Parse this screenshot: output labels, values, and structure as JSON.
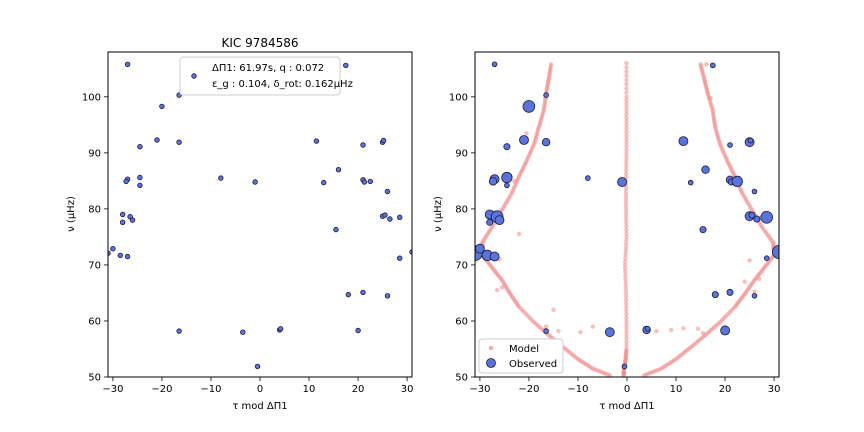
{
  "chart_data": [
    {
      "type": "scatter",
      "title": "KIC 9784586",
      "xlabel": "τ mod ΔΠ1",
      "ylabel": "ν (μHz)",
      "xlim": [
        -31,
        31
      ],
      "ylim": [
        50,
        108
      ],
      "xticks": [
        -30,
        -20,
        -10,
        0,
        10,
        20,
        30
      ],
      "yticks": [
        50,
        60,
        70,
        80,
        90,
        100
      ],
      "legend_position": "upper-center",
      "annotation": {
        "line1": "ΔΠ1: 61.97s, q : 0.072",
        "line2": "ε_g : 0.104, δ_rot: 0.162μHz"
      },
      "series": [
        {
          "style": "observed",
          "color": "#5b74d9",
          "points": [
            [
              -27,
              105.8
            ],
            [
              -16.5,
              100.3
            ],
            [
              -20,
              98.3
            ],
            [
              -21,
              92.3
            ],
            [
              -16.5,
              91.9
            ],
            [
              -24.5,
              91.1
            ],
            [
              -27,
              85.3
            ],
            [
              -27.3,
              84.9
            ],
            [
              -24.5,
              85.6
            ],
            [
              -24.5,
              84.2
            ],
            [
              -8,
              85.5
            ],
            [
              -1,
              84.8
            ],
            [
              -28,
              79
            ],
            [
              -26.5,
              78.6
            ],
            [
              -26,
              78
            ],
            [
              -28,
              77.6
            ],
            [
              -31,
              72.1
            ],
            [
              -30,
              72.9
            ],
            [
              -28.5,
              71.7
            ],
            [
              -27,
              71.5
            ],
            [
              -16.5,
              58.2
            ],
            [
              -3.5,
              58
            ],
            [
              4,
              58.4
            ],
            [
              4.2,
              58.6
            ],
            [
              -0.5,
              51.9
            ],
            [
              17.5,
              105.6
            ],
            [
              11.5,
              92.1
            ],
            [
              21,
              91.4
            ],
            [
              25,
              91.9
            ],
            [
              25.2,
              92.2
            ],
            [
              16,
              87
            ],
            [
              13,
              84.7
            ],
            [
              21,
              85.2
            ],
            [
              21.3,
              84.8
            ],
            [
              22.5,
              84.9
            ],
            [
              26,
              83.1
            ],
            [
              25,
              78.7
            ],
            [
              25.5,
              78.9
            ],
            [
              26.5,
              78.2
            ],
            [
              28.5,
              78.5
            ],
            [
              15.5,
              76.3
            ],
            [
              31,
              72.3
            ],
            [
              28.5,
              71.2
            ],
            [
              18,
              64.7
            ],
            [
              21,
              65.1
            ],
            [
              26,
              64.5
            ],
            [
              20,
              58.3
            ]
          ]
        }
      ]
    },
    {
      "type": "scatter",
      "xlabel": "τ mod ΔΠ1",
      "ylabel": "ν (μHz)",
      "xlim": [
        -31,
        31
      ],
      "ylim": [
        50,
        108
      ],
      "xticks": [
        -30,
        -20,
        -10,
        0,
        10,
        20,
        30
      ],
      "yticks": [
        50,
        60,
        70,
        80,
        90,
        100
      ],
      "legend_position": "lower-left",
      "legend": [
        "Model",
        "Observed"
      ],
      "series": [
        {
          "name": "Model",
          "color": "#f08a8a",
          "tracks": {
            "center": [
              [
                -0.7,
                50.3
              ],
              [
                -0.6,
                51.5
              ],
              [
                -0.3,
                53
              ],
              [
                -0.1,
                55
              ],
              [
                -0.1,
                60
              ],
              [
                -0.2,
                65
              ],
              [
                -0.4,
                70
              ],
              [
                -0.1,
                75
              ],
              [
                -0.2,
                80
              ],
              [
                -0.2,
                85
              ],
              [
                -0.1,
                90
              ],
              [
                -0.1,
                95
              ],
              [
                -0.1,
                100
              ],
              [
                -0.1,
                106
              ]
            ],
            "left": [
              [
                -3.5,
                50.3
              ],
              [
                -7,
                51.5
              ],
              [
                -10,
                53.2
              ],
              [
                -13,
                55.3
              ],
              [
                -16,
                57.5
              ],
              [
                -19,
                59.8
              ],
              [
                -22,
                62.5
              ],
              [
                -23.8,
                64.8
              ],
              [
                -25.5,
                67.3
              ],
              [
                -27.5,
                69.5
              ],
              [
                -29.5,
                71.8
              ],
              [
                -29.5,
                74
              ],
              [
                -27.5,
                76.8
              ],
              [
                -25.5,
                79.8
              ],
              [
                -23.5,
                82.8
              ],
              [
                -22,
                85.8
              ],
              [
                -20.5,
                88.5
              ],
              [
                -19,
                91.5
              ],
              [
                -18,
                94.5
              ],
              [
                -17,
                97.5
              ],
              [
                -16.5,
                100.5
              ],
              [
                -16,
                103
              ],
              [
                -15.5,
                105.8
              ]
            ],
            "right": [
              [
                3.5,
                50.3
              ],
              [
                7,
                51.5
              ],
              [
                10,
                53.2
              ],
              [
                13,
                55.3
              ],
              [
                16,
                57.5
              ],
              [
                19,
                59.8
              ],
              [
                22,
                62.5
              ],
              [
                24,
                64.8
              ],
              [
                26,
                67.3
              ],
              [
                28,
                69.5
              ],
              [
                30,
                71.8
              ],
              [
                29.8,
                74
              ],
              [
                27.5,
                76.8
              ],
              [
                25.5,
                79.8
              ],
              [
                23.5,
                82.8
              ],
              [
                22,
                85.8
              ],
              [
                20.5,
                88.5
              ],
              [
                19,
                91.5
              ],
              [
                18,
                94.5
              ],
              [
                17.5,
                97.5
              ],
              [
                16.5,
                100.5
              ],
              [
                15.8,
                103
              ],
              [
                15,
                105.8
              ]
            ],
            "extra": [
              [
                -26.5,
                65.5
              ],
              [
                -22,
                75.5
              ],
              [
                -16.5,
                59
              ],
              [
                -14,
                58.2
              ],
              [
                -9.5,
                58
              ],
              [
                -7,
                59
              ],
              [
                -15,
                62
              ],
              [
                -25.5,
                66
              ],
              [
                -26,
                71
              ],
              [
                -28,
                79.5
              ],
              [
                -23,
                85
              ],
              [
                14.5,
                58.6
              ],
              [
                11.5,
                58.7
              ],
              [
                9,
                58.4
              ],
              [
                6,
                58.2
              ],
              [
                24,
                67
              ],
              [
                26,
                65.2
              ],
              [
                25,
                70.8
              ],
              [
                28,
                79.3
              ],
              [
                22,
                85.3
              ],
              [
                27,
                67.5
              ],
              [
                20,
                59
              ],
              [
                15.5,
                57.8
              ],
              [
                -20.5,
                93.5
              ],
              [
                16.2,
                105.8
              ],
              [
                17,
                99.8
              ]
            ]
          }
        },
        {
          "name": "Observed",
          "color": "#5b74d9",
          "points": [
            [
              -27,
              105.8,
              2
            ],
            [
              -16.5,
              100.3,
              2
            ],
            [
              -20,
              98.3,
              7
            ],
            [
              -21,
              92.3,
              5
            ],
            [
              -16.5,
              91.9,
              4
            ],
            [
              -24.5,
              91.1,
              3
            ],
            [
              -27,
              85.3,
              5
            ],
            [
              -27.3,
              84.9,
              4
            ],
            [
              -24.5,
              85.6,
              6
            ],
            [
              -24.5,
              84.2,
              2
            ],
            [
              -8,
              85.5,
              2
            ],
            [
              -1,
              84.8,
              5
            ],
            [
              -28,
              79,
              5
            ],
            [
              -26.5,
              78.6,
              7
            ],
            [
              -26,
              78,
              5
            ],
            [
              -28,
              77.6,
              3
            ],
            [
              -31,
              72.1,
              9
            ],
            [
              -30,
              72.9,
              5
            ],
            [
              -28.5,
              71.7,
              6
            ],
            [
              -27,
              71.5,
              5
            ],
            [
              -16.5,
              58.2,
              2
            ],
            [
              -3.5,
              58,
              5
            ],
            [
              4,
              58.4,
              4
            ],
            [
              4.2,
              58.6,
              2
            ],
            [
              -0.5,
              51.9,
              2
            ],
            [
              17.5,
              105.6,
              2
            ],
            [
              11.5,
              92.1,
              5
            ],
            [
              21,
              91.4,
              2
            ],
            [
              25,
              91.9,
              5
            ],
            [
              25.2,
              92.2,
              2
            ],
            [
              16,
              87,
              4
            ],
            [
              13,
              84.7,
              2
            ],
            [
              21,
              85.2,
              4
            ],
            [
              21.3,
              84.8,
              3
            ],
            [
              22.5,
              84.9,
              6
            ],
            [
              26,
              83.1,
              2
            ],
            [
              25,
              78.7,
              5
            ],
            [
              25.5,
              78.9,
              3
            ],
            [
              26.5,
              78.2,
              3
            ],
            [
              28.5,
              78.5,
              7
            ],
            [
              15.5,
              76.3,
              3
            ],
            [
              31,
              72.3,
              8
            ],
            [
              28.5,
              71.2,
              2
            ],
            [
              18,
              64.7,
              3
            ],
            [
              21,
              65.1,
              3
            ],
            [
              26,
              64.5,
              2
            ],
            [
              20,
              58.3,
              5
            ]
          ]
        }
      ]
    }
  ]
}
